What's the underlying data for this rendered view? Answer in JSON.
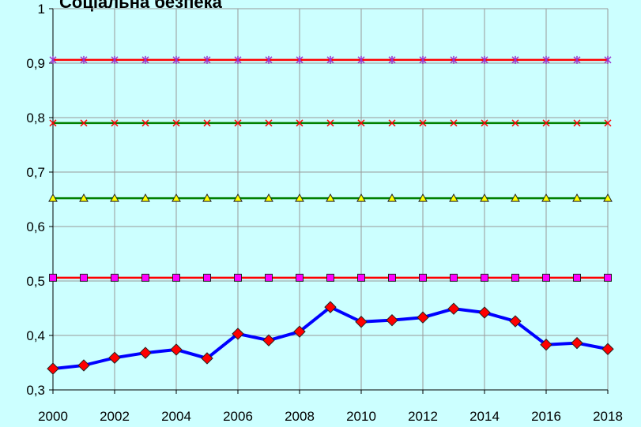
{
  "chart_data": {
    "type": "line",
    "title": "Соціальна безпека",
    "x": [
      2000,
      2001,
      2002,
      2003,
      2004,
      2005,
      2006,
      2007,
      2008,
      2009,
      2010,
      2011,
      2012,
      2013,
      2014,
      2015,
      2016,
      2017,
      2018
    ],
    "series": [
      {
        "color": "#0000ff",
        "marker": "diamond",
        "marker_color": "#ff0000",
        "values": [
          0.339,
          0.345,
          0.359,
          0.368,
          0.374,
          0.358,
          0.403,
          0.391,
          0.407,
          0.452,
          0.425,
          0.428,
          0.433,
          0.449,
          0.442,
          0.426,
          0.383,
          0.386,
          0.375
        ]
      },
      {
        "color": "#ff0000",
        "marker": "square",
        "marker_color": "#ff00ff",
        "values": [
          0.506,
          0.506,
          0.506,
          0.506,
          0.506,
          0.506,
          0.506,
          0.506,
          0.506,
          0.506,
          0.506,
          0.506,
          0.506,
          0.506,
          0.506,
          0.506,
          0.506,
          0.506,
          0.506
        ]
      },
      {
        "color": "#008000",
        "marker": "triangle",
        "marker_color": "#ffff00",
        "values": [
          0.652,
          0.652,
          0.652,
          0.652,
          0.652,
          0.652,
          0.652,
          0.652,
          0.652,
          0.652,
          0.652,
          0.652,
          0.652,
          0.652,
          0.652,
          0.652,
          0.652,
          0.652,
          0.652
        ]
      },
      {
        "color": "#008000",
        "marker": "x",
        "marker_color": "#ff0000",
        "values": [
          0.79,
          0.79,
          0.79,
          0.79,
          0.79,
          0.79,
          0.79,
          0.79,
          0.79,
          0.79,
          0.79,
          0.79,
          0.79,
          0.79,
          0.79,
          0.79,
          0.79,
          0.79,
          0.79
        ]
      },
      {
        "color": "#ff0000",
        "marker": "asterisk",
        "marker_color": "#9933cc",
        "values": [
          0.906,
          0.906,
          0.906,
          0.906,
          0.906,
          0.906,
          0.906,
          0.906,
          0.906,
          0.906,
          0.906,
          0.906,
          0.906,
          0.906,
          0.906,
          0.906,
          0.906,
          0.906,
          0.906
        ]
      }
    ],
    "xlim": [
      2000,
      2018
    ],
    "xticks": [
      2000,
      2002,
      2004,
      2006,
      2008,
      2010,
      2012,
      2014,
      2016,
      2018
    ],
    "ylim": [
      0.3,
      1
    ],
    "yticks": [
      {
        "value": 0.3,
        "label": "0,3"
      },
      {
        "value": 0.4,
        "label": "0,4"
      },
      {
        "value": 0.5,
        "label": "0,5"
      },
      {
        "value": 0.6,
        "label": "0,6"
      },
      {
        "value": 0.7,
        "label": "0,7"
      },
      {
        "value": 0.8,
        "label": "0,8"
      },
      {
        "value": 0.9,
        "label": "0,9"
      },
      1
    ],
    "grid": true
  }
}
